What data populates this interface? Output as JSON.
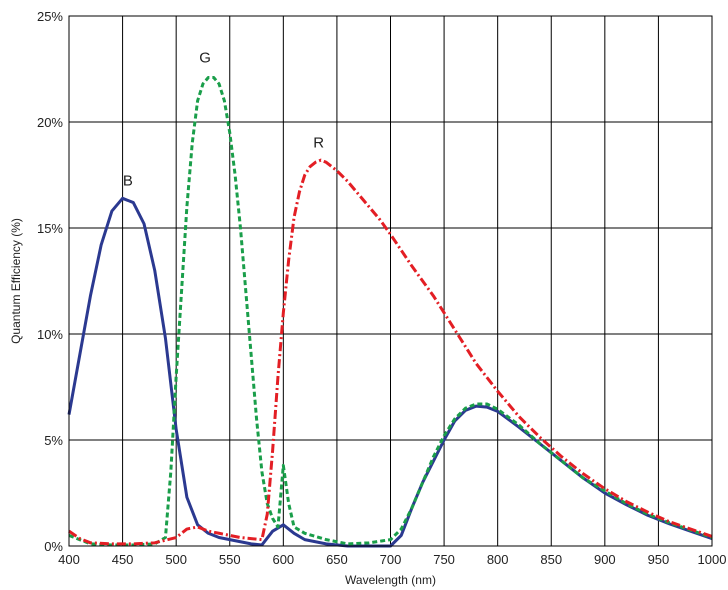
{
  "chart_data": {
    "type": "line",
    "title": "",
    "xlabel": "Wavelength (nm)",
    "ylabel": "Quantum Efficiency (%)",
    "xlim": [
      400,
      1000
    ],
    "ylim": [
      0,
      25
    ],
    "grid": true,
    "legend": "none",
    "x_ticks": [
      "400",
      "450",
      "500",
      "550",
      "600",
      "650",
      "700",
      "750",
      "800",
      "850",
      "900",
      "950",
      "1000"
    ],
    "y_ticks": [
      "0%",
      "5%",
      "10%",
      "15%",
      "20%",
      "25%"
    ],
    "series": [
      {
        "name": "B",
        "color": "#2b3990",
        "style": "solid",
        "points": [
          [
            400,
            6.2
          ],
          [
            410,
            9.0
          ],
          [
            420,
            11.8
          ],
          [
            430,
            14.2
          ],
          [
            440,
            15.8
          ],
          [
            450,
            16.4
          ],
          [
            460,
            16.2
          ],
          [
            470,
            15.2
          ],
          [
            480,
            13.0
          ],
          [
            490,
            9.8
          ],
          [
            500,
            5.5
          ],
          [
            510,
            2.3
          ],
          [
            520,
            1.0
          ],
          [
            530,
            0.6
          ],
          [
            540,
            0.4
          ],
          [
            550,
            0.3
          ],
          [
            560,
            0.2
          ],
          [
            570,
            0.1
          ],
          [
            580,
            0.05
          ],
          [
            590,
            0.7
          ],
          [
            600,
            1.0
          ],
          [
            610,
            0.6
          ],
          [
            620,
            0.3
          ],
          [
            640,
            0.1
          ],
          [
            660,
            0.0
          ],
          [
            680,
            0.0
          ],
          [
            700,
            0.0
          ],
          [
            710,
            0.5
          ],
          [
            720,
            1.8
          ],
          [
            730,
            3.0
          ],
          [
            740,
            4.0
          ],
          [
            750,
            5.0
          ],
          [
            760,
            5.9
          ],
          [
            770,
            6.4
          ],
          [
            780,
            6.6
          ],
          [
            790,
            6.55
          ],
          [
            800,
            6.35
          ],
          [
            820,
            5.6
          ],
          [
            840,
            4.8
          ],
          [
            860,
            4.0
          ],
          [
            880,
            3.2
          ],
          [
            900,
            2.5
          ],
          [
            920,
            1.95
          ],
          [
            940,
            1.45
          ],
          [
            960,
            1.05
          ],
          [
            980,
            0.7
          ],
          [
            1000,
            0.35
          ]
        ]
      },
      {
        "name": "G",
        "color": "#1a9e4a",
        "style": "dashed",
        "points": [
          [
            400,
            0.5
          ],
          [
            420,
            0.1
          ],
          [
            440,
            0.05
          ],
          [
            460,
            0.05
          ],
          [
            480,
            0.1
          ],
          [
            490,
            0.4
          ],
          [
            495,
            3.5
          ],
          [
            500,
            8.0
          ],
          [
            505,
            12.0
          ],
          [
            510,
            16.0
          ],
          [
            515,
            19.0
          ],
          [
            520,
            21.0
          ],
          [
            525,
            21.8
          ],
          [
            530,
            22.1
          ],
          [
            535,
            22.1
          ],
          [
            540,
            21.8
          ],
          [
            545,
            21.0
          ],
          [
            550,
            19.5
          ],
          [
            555,
            17.5
          ],
          [
            560,
            15.0
          ],
          [
            565,
            12.0
          ],
          [
            570,
            9.0
          ],
          [
            575,
            6.0
          ],
          [
            580,
            3.5
          ],
          [
            585,
            2.0
          ],
          [
            590,
            1.3
          ],
          [
            595,
            0.9
          ],
          [
            600,
            3.8
          ],
          [
            605,
            2.0
          ],
          [
            610,
            0.9
          ],
          [
            620,
            0.6
          ],
          [
            640,
            0.3
          ],
          [
            660,
            0.1
          ],
          [
            680,
            0.15
          ],
          [
            700,
            0.3
          ],
          [
            710,
            0.8
          ],
          [
            720,
            1.8
          ],
          [
            730,
            3.0
          ],
          [
            740,
            4.2
          ],
          [
            750,
            5.2
          ],
          [
            760,
            6.0
          ],
          [
            770,
            6.5
          ],
          [
            780,
            6.7
          ],
          [
            790,
            6.7
          ],
          [
            800,
            6.45
          ],
          [
            820,
            5.7
          ],
          [
            840,
            4.8
          ],
          [
            860,
            4.0
          ],
          [
            880,
            3.2
          ],
          [
            900,
            2.6
          ],
          [
            920,
            2.0
          ],
          [
            940,
            1.5
          ],
          [
            960,
            1.1
          ],
          [
            980,
            0.75
          ],
          [
            1000,
            0.4
          ]
        ]
      },
      {
        "name": "R",
        "color": "#e31e24",
        "style": "dashdot",
        "points": [
          [
            400,
            0.7
          ],
          [
            410,
            0.35
          ],
          [
            420,
            0.15
          ],
          [
            440,
            0.1
          ],
          [
            460,
            0.1
          ],
          [
            480,
            0.15
          ],
          [
            500,
            0.4
          ],
          [
            510,
            0.8
          ],
          [
            520,
            0.9
          ],
          [
            530,
            0.7
          ],
          [
            540,
            0.6
          ],
          [
            550,
            0.5
          ],
          [
            560,
            0.4
          ],
          [
            570,
            0.35
          ],
          [
            580,
            0.3
          ],
          [
            585,
            1.5
          ],
          [
            590,
            4.5
          ],
          [
            595,
            8.0
          ],
          [
            600,
            11.0
          ],
          [
            605,
            13.5
          ],
          [
            610,
            15.5
          ],
          [
            615,
            16.7
          ],
          [
            620,
            17.5
          ],
          [
            625,
            17.9
          ],
          [
            630,
            18.1
          ],
          [
            635,
            18.2
          ],
          [
            640,
            18.1
          ],
          [
            650,
            17.7
          ],
          [
            660,
            17.2
          ],
          [
            670,
            16.6
          ],
          [
            680,
            16.0
          ],
          [
            690,
            15.4
          ],
          [
            700,
            14.7
          ],
          [
            720,
            13.2
          ],
          [
            740,
            11.8
          ],
          [
            760,
            10.2
          ],
          [
            780,
            8.6
          ],
          [
            800,
            7.3
          ],
          [
            820,
            6.1
          ],
          [
            840,
            5.1
          ],
          [
            860,
            4.2
          ],
          [
            880,
            3.4
          ],
          [
            900,
            2.7
          ],
          [
            920,
            2.1
          ],
          [
            940,
            1.6
          ],
          [
            960,
            1.15
          ],
          [
            980,
            0.8
          ],
          [
            1000,
            0.45
          ]
        ]
      }
    ],
    "annotations": [
      {
        "text": "B",
        "x": 455,
        "y": 17.0
      },
      {
        "text": "G",
        "x": 527,
        "y": 22.8
      },
      {
        "text": "R",
        "x": 633,
        "y": 18.8
      }
    ]
  }
}
